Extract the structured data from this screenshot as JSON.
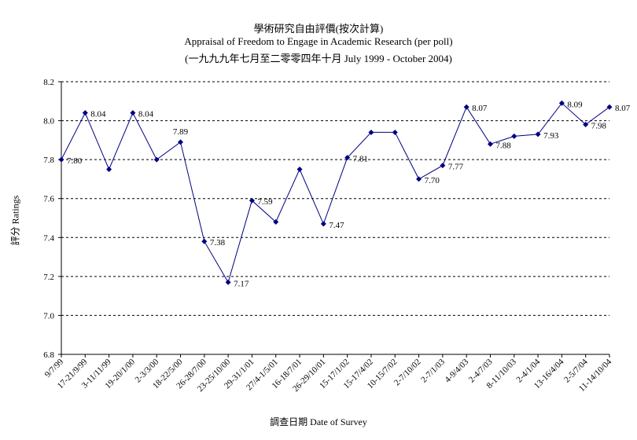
{
  "chart_data": {
    "type": "line",
    "title_zh": "學術研究自由評價(按次計算)",
    "title_en": "Appraisal of Freedom to Engage in Academic Research (per poll)",
    "subtitle": "(一九九九年七月至二零零四年十月 July 1999 - October 2004)",
    "ylabel": "評分 Ratings",
    "xlabel": "調查日期 Date of Survey",
    "ylim": [
      6.8,
      8.2
    ],
    "yticks": [
      "6.8",
      "7.0",
      "7.2",
      "7.4",
      "7.6",
      "7.8",
      "8.0",
      "8.2"
    ],
    "grid": true,
    "line_color": "#000080",
    "categories": [
      "9/7/99",
      "17-21/9/99",
      "3-11/11/99",
      "19-20/1/00",
      "2-3/3/00",
      "18-22/5/00",
      "26-28/7/00",
      "23-25/10/00",
      "29-31/1/01",
      "27/4-1/5/01",
      "16-18/7/01",
      "26-29/10/01",
      "15-17/1/02",
      "15-17/4/02",
      "10-15/7/02",
      "2-7/10/02",
      "2-7/1/03",
      "4-9/4/03",
      "2-4/7/03",
      "8-11/10/03",
      "2-4/1/04",
      "13-16/4/04",
      "2-5/7/04",
      "11-14/10/04"
    ],
    "values": [
      7.8,
      8.04,
      7.75,
      8.04,
      7.8,
      7.89,
      7.38,
      7.17,
      7.59,
      7.48,
      7.75,
      7.47,
      7.81,
      7.94,
      7.94,
      7.7,
      7.77,
      8.07,
      7.88,
      7.92,
      7.93,
      8.09,
      7.98,
      8.07
    ],
    "point_labels": [
      "7.80",
      "8.04",
      "",
      "8.04",
      "",
      "7.89",
      "7.38",
      "7.17",
      "7.59",
      "",
      "",
      "7.47",
      "7.81",
      "",
      "",
      "7.70",
      "7.77",
      "8.07",
      "7.88",
      "",
      "7.93",
      "8.09",
      "7.98",
      "8.07"
    ]
  }
}
